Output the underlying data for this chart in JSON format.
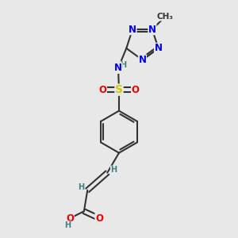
{
  "bg_color": "#e8e8e8",
  "bond_color": "#333333",
  "bond_width": 1.5,
  "atom_colors": {
    "C": "#333333",
    "N": "#0000ee",
    "O": "#ee0000",
    "S": "#cccc00",
    "H": "#408080"
  },
  "font_size": 8.5
}
